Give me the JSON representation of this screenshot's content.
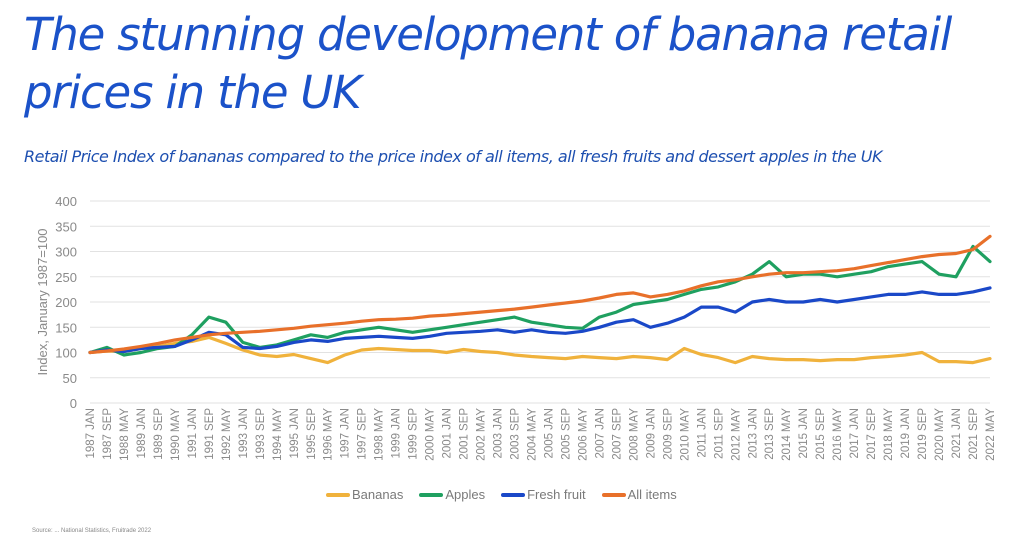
{
  "header": {
    "title": "The stunning development of banana retail prices in the UK",
    "subtitle": "Retail Price Index of bananas compared to the price index of all items, all fresh fruits and dessert apples in the UK"
  },
  "legend": [
    {
      "label": "Bananas",
      "color": "#f0b23c"
    },
    {
      "label": "Apples",
      "color": "#1fa060"
    },
    {
      "label": "Fresh fruit",
      "color": "#1a48c8"
    },
    {
      "label": "All items",
      "color": "#e8702a"
    }
  ],
  "chart_data": {
    "type": "line",
    "title": "Retail Price Index of bananas compared to the price index of all items, all fresh fruits and dessert apples in the UK",
    "xlabel": "",
    "ylabel": "Index, January 1987=100",
    "ylim": [
      0,
      400
    ],
    "yticks": [
      0,
      50,
      100,
      150,
      200,
      250,
      300,
      350,
      400
    ],
    "grid": true,
    "legend_position": "bottom",
    "x": [
      "1987 JAN",
      "1987 SEP",
      "1988 MAY",
      "1989 JAN",
      "1989 SEP",
      "1990 MAY",
      "1991 JAN",
      "1991 SEP",
      "1992 MAY",
      "1993 JAN",
      "1993 SEP",
      "1994 MAY",
      "1995 JAN",
      "1995 SEP",
      "1996 MAY",
      "1997 JAN",
      "1997 SEP",
      "1998 MAY",
      "1999 JAN",
      "1999 SEP",
      "2000 MAY",
      "2001 JAN",
      "2001 SEP",
      "2002 MAY",
      "2003 JAN",
      "2003 SEP",
      "2004 MAY",
      "2005 JAN",
      "2005 SEP",
      "2006 MAY",
      "2007 JAN",
      "2007 SEP",
      "2008 MAY",
      "2009 JAN",
      "2009 SEP",
      "2010 MAY",
      "2011 JAN",
      "2011 SEP",
      "2012 MAY",
      "2013 JAN",
      "2013 SEP",
      "2014 MAY",
      "2015 JAN",
      "2015 SEP",
      "2016 MAY",
      "2017 JAN",
      "2017 SEP",
      "2018 MAY",
      "2019 JAN",
      "2019 SEP",
      "2020 MAY",
      "2021 JAN",
      "2021 SEP",
      "2022 MAY"
    ],
    "series": [
      {
        "name": "Bananas",
        "color": "#f0b23c",
        "values": [
          100,
          103,
          102,
          108,
          112,
          118,
          122,
          130,
          118,
          105,
          95,
          92,
          96,
          88,
          80,
          95,
          105,
          108,
          106,
          104,
          104,
          100,
          106,
          102,
          100,
          95,
          92,
          90,
          88,
          92,
          90,
          88,
          92,
          90,
          86,
          108,
          96,
          90,
          80,
          92,
          88,
          86,
          86,
          84,
          86,
          86,
          90,
          92,
          95,
          100,
          82,
          82,
          80,
          88
        ]
      },
      {
        "name": "Apples",
        "color": "#1fa060",
        "values": [
          100,
          110,
          95,
          100,
          108,
          112,
          135,
          170,
          160,
          120,
          110,
          115,
          125,
          135,
          130,
          140,
          145,
          150,
          145,
          140,
          145,
          150,
          155,
          160,
          165,
          170,
          160,
          155,
          150,
          148,
          170,
          180,
          195,
          200,
          205,
          215,
          225,
          230,
          240,
          255,
          280,
          250,
          255,
          255,
          250,
          255,
          260,
          270,
          275,
          280,
          255,
          250,
          310,
          280
        ]
      },
      {
        "name": "Fresh fruit",
        "color": "#1a48c8",
        "values": [
          100,
          105,
          102,
          108,
          110,
          112,
          125,
          140,
          135,
          110,
          108,
          112,
          120,
          125,
          122,
          128,
          130,
          132,
          130,
          128,
          132,
          138,
          140,
          142,
          145,
          140,
          145,
          140,
          138,
          142,
          150,
          160,
          165,
          150,
          158,
          170,
          190,
          190,
          180,
          200,
          205,
          200,
          200,
          205,
          200,
          205,
          210,
          215,
          215,
          220,
          215,
          215,
          220,
          228
        ]
      },
      {
        "name": "All items",
        "color": "#e8702a",
        "values": [
          100,
          103,
          107,
          112,
          118,
          125,
          130,
          135,
          138,
          140,
          142,
          145,
          148,
          152,
          155,
          158,
          162,
          165,
          166,
          168,
          172,
          174,
          177,
          180,
          183,
          186,
          190,
          194,
          198,
          202,
          208,
          215,
          218,
          210,
          215,
          222,
          232,
          240,
          244,
          250,
          255,
          258,
          258,
          260,
          262,
          266,
          272,
          278,
          284,
          290,
          294,
          296,
          304,
          330
        ]
      }
    ]
  },
  "source": "Source: ... National Statistics, Fruitrade 2022"
}
